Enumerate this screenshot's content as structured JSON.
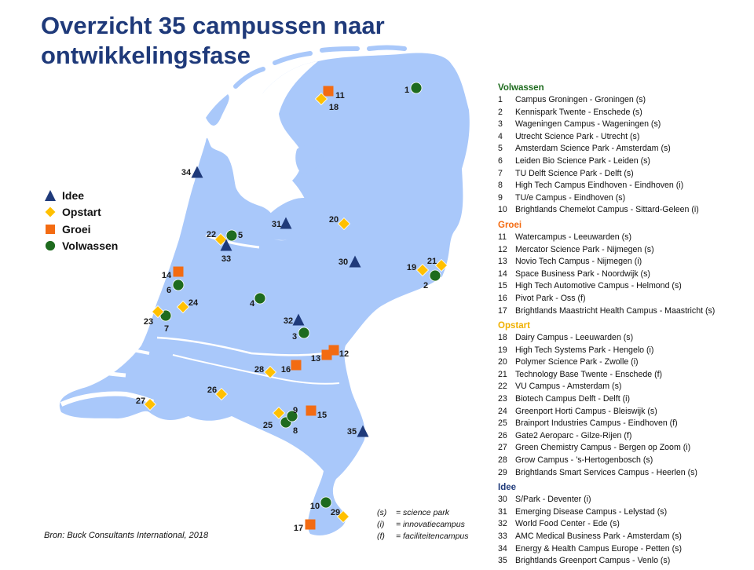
{
  "title": "Overzicht 35 campussen naar ontwikkelingsfase",
  "colors": {
    "land": "#a9c8fa",
    "water": "#ffffff",
    "Volwassen": "#1e6b1e",
    "Groei": "#f36b12",
    "Opstart": "#ffc000",
    "Idee": "#1f3a7a"
  },
  "legend": [
    {
      "phase": "Idee",
      "label": "Idee",
      "icon": "triangle"
    },
    {
      "phase": "Opstart",
      "label": "Opstart",
      "icon": "diamond"
    },
    {
      "phase": "Groei",
      "label": "Groei",
      "icon": "square"
    },
    {
      "phase": "Volwassen",
      "label": "Volwassen",
      "icon": "circle"
    }
  ],
  "groups": [
    {
      "name": "Volwassen",
      "items": [
        {
          "num": "1",
          "text": "Campus Groningen - Groningen (s)"
        },
        {
          "num": "2",
          "text": "Kennispark Twente - Enschede (s)"
        },
        {
          "num": "3",
          "text": "Wageningen Campus - Wageningen (s)"
        },
        {
          "num": "4",
          "text": "Utrecht Science Park - Utrecht (s)"
        },
        {
          "num": "5",
          "text": "Amsterdam Science Park - Amsterdam (s)"
        },
        {
          "num": "6",
          "text": "Leiden Bio Science Park - Leiden (s)"
        },
        {
          "num": "7",
          "text": "TU Delft Science Park - Delft (s)"
        },
        {
          "num": "8",
          "text": "High Tech Campus Eindhoven - Eindhoven (i)"
        },
        {
          "num": "9",
          "text": "TU/e Campus - Eindhoven (s)"
        },
        {
          "num": "10",
          "text": "Brightlands Chemelot Campus - Sittard-Geleen (i)"
        }
      ]
    },
    {
      "name": "Groei",
      "items": [
        {
          "num": "11",
          "text": "Watercampus - Leeuwarden (s)"
        },
        {
          "num": "12",
          "text": "Mercator Science Park - Nijmegen (s)"
        },
        {
          "num": "13",
          "text": "Novio Tech Campus - Nijmegen (i)"
        },
        {
          "num": "14",
          "text": "Space Business Park - Noordwijk (s)"
        },
        {
          "num": "15",
          "text": "High Tech Automotive Campus - Helmond (s)"
        },
        {
          "num": "16",
          "text": "Pivot Park - Oss (f)"
        },
        {
          "num": "17",
          "text": "Brightlands Maastricht Health Campus - Maastricht (s)"
        }
      ]
    },
    {
      "name": "Opstart",
      "items": [
        {
          "num": "18",
          "text": "Dairy Campus - Leeuwarden (s)"
        },
        {
          "num": "19",
          "text": "High Tech Systems Park - Hengelo (i)"
        },
        {
          "num": "20",
          "text": "Polymer Science Park - Zwolle (i)"
        },
        {
          "num": "21",
          "text": "Technology Base Twente - Enschede (f)"
        },
        {
          "num": "22",
          "text": "VU Campus - Amsterdam (s)"
        },
        {
          "num": "23",
          "text": "Biotech Campus Delft - Delft (i)"
        },
        {
          "num": "24",
          "text": "Greenport Horti Campus - Bleiswijk (s)"
        },
        {
          "num": "25",
          "text": "Brainport Industries Campus - Eindhoven (f)"
        },
        {
          "num": "26",
          "text": "Gate2 Aeroparc - Gilze-Rijen (f)"
        },
        {
          "num": "27",
          "text": "Green Chemistry Campus - Bergen op Zoom (i)"
        },
        {
          "num": "28",
          "text": "Grow Campus - ’s-Hertogenbosch (s)"
        },
        {
          "num": "29",
          "text": "Brightlands Smart Services Campus - Heerlen (s)"
        }
      ]
    },
    {
      "name": "Idee",
      "items": [
        {
          "num": "30",
          "text": "S/Park - Deventer (i)"
        },
        {
          "num": "31",
          "text": "Emerging Disease Campus - Lelystad (s)"
        },
        {
          "num": "32",
          "text": "World Food Center - Ede (s)"
        },
        {
          "num": "33",
          "text": "AMC Medical Business Park - Amsterdam (s)"
        },
        {
          "num": "34",
          "text": "Energy & Health Campus Europe - Petten (s)"
        },
        {
          "num": "35",
          "text": "Brightlands Greenport Campus - Venlo (s)"
        }
      ]
    }
  ],
  "notes": [
    {
      "key": "(s)",
      "text": "= science park"
    },
    {
      "key": "(i)",
      "text": "= innovatiecampus"
    },
    {
      "key": "(f)",
      "text": "= faciliteitencampus"
    }
  ],
  "source": "Bron: Buck Consultants International, 2018"
}
